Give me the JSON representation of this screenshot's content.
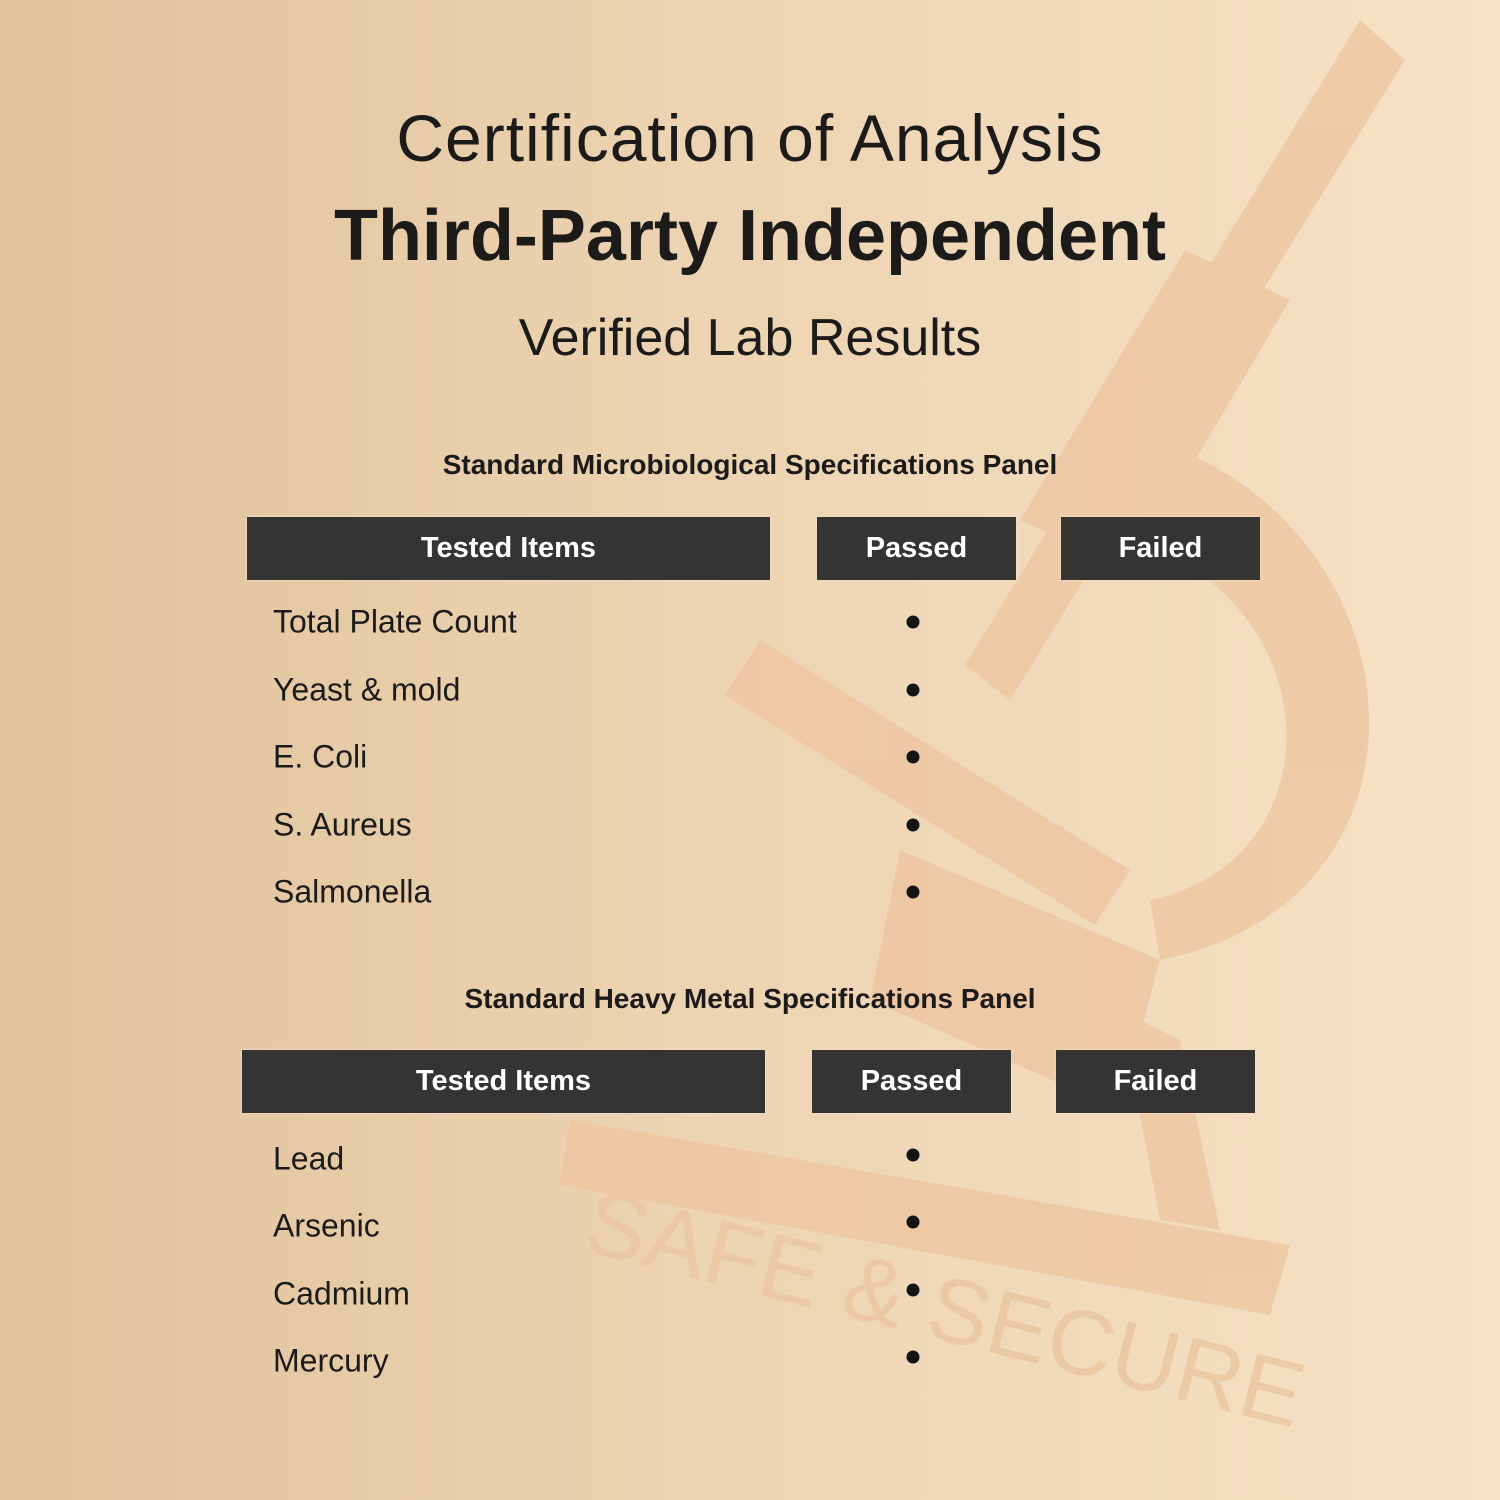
{
  "header": {
    "line1": "Certification of Analysis",
    "line2": "Third-Party Independent",
    "line3": "Verified Lab Results"
  },
  "watermark": {
    "text": "SAFE & SECURE",
    "icon": "microscope-icon",
    "color": "#eec49f"
  },
  "colors": {
    "header_bg": "#363432",
    "header_text": "#ffffff",
    "text": "#1d1b19"
  },
  "panels": [
    {
      "title": "Standard Microbiological Specifications Panel",
      "columns": [
        "Tested Items",
        "Passed",
        "Failed"
      ],
      "rows": [
        {
          "item": "Total Plate Count",
          "result": "Passed"
        },
        {
          "item": "Yeast & mold",
          "result": "Passed"
        },
        {
          "item": "E. Coli",
          "result": "Passed"
        },
        {
          "item": "S. Aureus",
          "result": "Passed"
        },
        {
          "item": "Salmonella",
          "result": "Passed"
        }
      ]
    },
    {
      "title": "Standard Heavy Metal Specifications Panel",
      "columns": [
        "Tested Items",
        "Passed",
        "Failed"
      ],
      "rows": [
        {
          "item": "Lead",
          "result": "Passed"
        },
        {
          "item": "Arsenic",
          "result": "Passed"
        },
        {
          "item": "Cadmium",
          "result": "Passed"
        },
        {
          "item": "Mercury",
          "result": "Passed"
        }
      ]
    }
  ]
}
